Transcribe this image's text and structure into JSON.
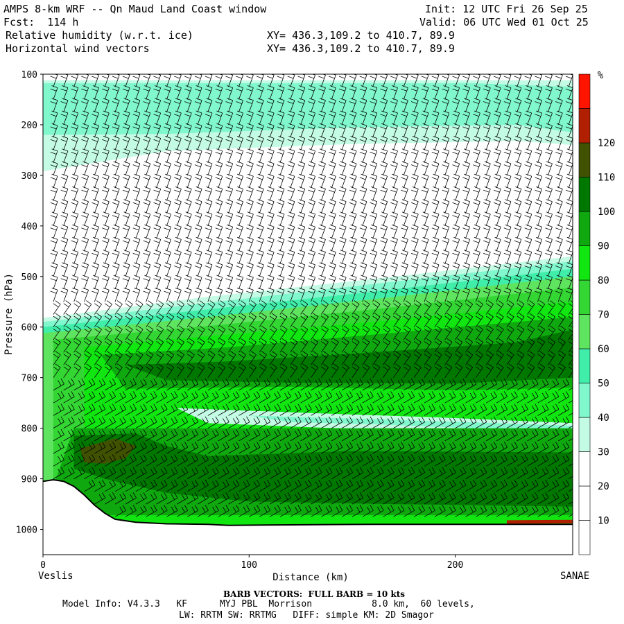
{
  "header": {
    "title": "AMPS 8-km WRF -- Qn Maud Land Coast window",
    "fcst": "Fcst:  114 h",
    "init": "Init: 12 UTC Fri 26 Sep 25",
    "valid": "Valid: 06 UTC Wed 01 Oct 25",
    "field1": "Relative humidity (w.r.t. ice)",
    "field2": "Horizontal wind vectors",
    "xy1": "XY= 436.3,109.2 to 410.7, 89.9",
    "xy2": "XY= 436.3,109.2 to 410.7, 89.9"
  },
  "endpoints": {
    "left": "Veslis",
    "right": "SANAE"
  },
  "footer": {
    "barb": "BARB VECTORS:  FULL BARB = 10 kts",
    "line1": "Model Info: V4.3.3   KF      MYJ PBL  Morrison           8.0 km,  60 levels,",
    "line2": "LW: RRTM SW: RRTMG   DIFF: simple KM: 2D Smagor"
  },
  "chart_data": {
    "type": "heatmap",
    "title": "Relative humidity (w.r.t. ice) and horizontal wind vectors",
    "xlabel": "Distance (km)",
    "ylabel": "Pressure (hPa)",
    "xlim": [
      0,
      257
    ],
    "ylim": [
      1050,
      100
    ],
    "x_ticks": [
      0,
      100,
      200
    ],
    "y_ticks": [
      100,
      200,
      300,
      400,
      500,
      600,
      700,
      800,
      900,
      1000
    ],
    "colorbar": {
      "unit": "%",
      "ticks": [
        10,
        20,
        30,
        40,
        50,
        60,
        70,
        80,
        90,
        100,
        110,
        120
      ],
      "levels": [
        {
          "min": 0,
          "max": 10,
          "color": "#ffffff"
        },
        {
          "min": 10,
          "max": 20,
          "color": "#ffffff"
        },
        {
          "min": 20,
          "max": 30,
          "color": "#ffffff"
        },
        {
          "min": 30,
          "max": 40,
          "color": "#c4fbe4"
        },
        {
          "min": 40,
          "max": 50,
          "color": "#80f7cd"
        },
        {
          "min": 50,
          "max": 60,
          "color": "#40eeaa"
        },
        {
          "min": 60,
          "max": 70,
          "color": "#5fe45f"
        },
        {
          "min": 70,
          "max": 80,
          "color": "#33d633"
        },
        {
          "min": 80,
          "max": 90,
          "color": "#11e611"
        },
        {
          "min": 90,
          "max": 100,
          "color": "#0fa80f"
        },
        {
          "min": 100,
          "max": 110,
          "color": "#007800"
        },
        {
          "min": 110,
          "max": 120,
          "color": "#405200"
        },
        {
          "min": 120,
          "max": 130,
          "color": "#b02000"
        },
        {
          "min": 130,
          "max": 140,
          "color": "#ff1400"
        }
      ]
    },
    "regions": [
      {
        "name": "upper-moist-layer-outer",
        "level": "30-40",
        "polygon": [
          [
            0,
            112
          ],
          [
            257,
            112
          ],
          [
            257,
            240
          ],
          [
            230,
            232
          ],
          [
            150,
            238
          ],
          [
            60,
            252
          ],
          [
            0,
            292
          ]
        ]
      },
      {
        "name": "upper-moist-layer-core",
        "level": "40-50",
        "polygon": [
          [
            0,
            118
          ],
          [
            210,
            118
          ],
          [
            257,
            125
          ],
          [
            257,
            215
          ],
          [
            230,
            200
          ],
          [
            150,
            205
          ],
          [
            60,
            218
          ],
          [
            0,
            220
          ]
        ]
      },
      {
        "name": "lower-moist-ledge",
        "level": "30-40",
        "polygon": [
          [
            0,
            582
          ],
          [
            80,
            540
          ],
          [
            160,
            505
          ],
          [
            257,
            460
          ],
          [
            257,
            1000
          ],
          [
            0,
            1000
          ]
        ]
      },
      {
        "name": "lower-layer-40",
        "level": "40-50",
        "polygon": [
          [
            0,
            590
          ],
          [
            80,
            552
          ],
          [
            160,
            515
          ],
          [
            257,
            470
          ],
          [
            257,
            1000
          ],
          [
            0,
            1000
          ]
        ]
      },
      {
        "name": "lower-layer-50",
        "level": "50-60",
        "polygon": [
          [
            0,
            600
          ],
          [
            80,
            565
          ],
          [
            160,
            530
          ],
          [
            257,
            485
          ],
          [
            257,
            1000
          ],
          [
            0,
            1000
          ]
        ]
      },
      {
        "name": "lower-layer-60",
        "level": "60-70",
        "polygon": [
          [
            0,
            612
          ],
          [
            80,
            580
          ],
          [
            160,
            545
          ],
          [
            257,
            500
          ],
          [
            257,
            1000
          ],
          [
            0,
            1000
          ]
        ]
      },
      {
        "name": "lower-layer-70",
        "level": "70-80",
        "polygon": [
          [
            5,
            625
          ],
          [
            80,
            598
          ],
          [
            160,
            565
          ],
          [
            257,
            522
          ],
          [
            257,
            1000
          ],
          [
            5,
            1000
          ]
        ]
      },
      {
        "name": "lower-layer-80",
        "level": "80-90",
        "polygon": [
          [
            20,
            640
          ],
          [
            80,
            618
          ],
          [
            160,
            590
          ],
          [
            257,
            550
          ],
          [
            257,
            1000
          ],
          [
            20,
            1000
          ]
        ]
      },
      {
        "name": "lower-layer-90",
        "level": "90-100",
        "polygon": [
          [
            28,
            655
          ],
          [
            90,
            640
          ],
          [
            160,
            615
          ],
          [
            257,
            580
          ],
          [
            257,
            720
          ],
          [
            200,
            725
          ],
          [
            120,
            718
          ],
          [
            40,
            722
          ]
        ]
      },
      {
        "name": "mid-core-100",
        "level": "100-110",
        "polygon": [
          [
            40,
            675
          ],
          [
            90,
            668
          ],
          [
            160,
            650
          ],
          [
            230,
            630
          ],
          [
            257,
            605
          ],
          [
            257,
            700
          ],
          [
            200,
            712
          ],
          [
            120,
            710
          ],
          [
            60,
            705
          ]
        ]
      },
      {
        "name": "aqua-band-outer",
        "level": "30-40",
        "polygon": [
          [
            65,
            760
          ],
          [
            130,
            770
          ],
          [
            200,
            780
          ],
          [
            257,
            790
          ],
          [
            257,
            815
          ],
          [
            200,
            808
          ],
          [
            130,
            798
          ],
          [
            80,
            790
          ]
        ]
      },
      {
        "name": "aqua-band-inner",
        "level": "40-50",
        "polygon": [
          [
            100,
            775
          ],
          [
            160,
            782
          ],
          [
            220,
            790
          ],
          [
            257,
            795
          ],
          [
            257,
            808
          ],
          [
            220,
            802
          ],
          [
            160,
            792
          ],
          [
            120,
            788
          ]
        ]
      },
      {
        "name": "low-green-90",
        "level": "90-100",
        "polygon": [
          [
            15,
            800
          ],
          [
            257,
            800
          ],
          [
            257,
            972
          ],
          [
            0,
            972
          ]
        ]
      },
      {
        "name": "low-core-100",
        "level": "100-110",
        "polygon": [
          [
            15,
            815
          ],
          [
            45,
            810
          ],
          [
            60,
            835
          ],
          [
            80,
            855
          ],
          [
            150,
            845
          ],
          [
            257,
            848
          ],
          [
            257,
            955
          ],
          [
            170,
            950
          ],
          [
            100,
            945
          ],
          [
            60,
            928
          ],
          [
            30,
            900
          ],
          [
            15,
            880
          ]
        ]
      },
      {
        "name": "low-core-110",
        "level": "110-120",
        "polygon": [
          [
            18,
            840
          ],
          [
            35,
            820
          ],
          [
            45,
            835
          ],
          [
            40,
            860
          ],
          [
            30,
            870
          ],
          [
            20,
            868
          ]
        ]
      },
      {
        "name": "surface-red-strip",
        "level": "120-130",
        "polygon": [
          [
            225,
            982
          ],
          [
            257,
            981
          ],
          [
            257,
            988
          ],
          [
            225,
            989
          ]
        ]
      }
    ],
    "terrain": {
      "surface": [
        [
          0,
          905
        ],
        [
          5,
          902
        ],
        [
          10,
          905
        ],
        [
          15,
          915
        ],
        [
          20,
          932
        ],
        [
          25,
          952
        ],
        [
          30,
          968
        ],
        [
          35,
          980
        ],
        [
          45,
          986
        ],
        [
          60,
          989
        ],
        [
          80,
          990
        ],
        [
          90,
          992
        ],
        [
          120,
          991
        ],
        [
          160,
          990
        ],
        [
          200,
          990
        ],
        [
          257,
          990
        ]
      ]
    },
    "wind_barbs": {
      "columns_km": [
        5,
        10,
        15,
        20,
        25,
        30,
        35,
        40,
        45,
        50,
        55,
        60,
        65,
        70,
        75,
        80,
        85,
        90,
        95,
        100,
        105,
        110,
        115,
        120,
        125,
        130,
        135,
        140,
        145,
        150,
        155,
        160,
        165,
        170,
        175,
        180,
        185,
        190,
        195,
        200,
        205,
        210,
        215,
        220,
        225,
        230,
        235,
        240,
        245,
        250,
        255
      ],
      "pressures_hpa": [
        125,
        150,
        175,
        200,
        225,
        250,
        275,
        300,
        325,
        350,
        375,
        400,
        425,
        450,
        475,
        500,
        525,
        550,
        575,
        600,
        625,
        650,
        675,
        700,
        725,
        750,
        775,
        800,
        825,
        850,
        875,
        900,
        925,
        950,
        975
      ],
      "full_barb_kts": 10
    }
  }
}
